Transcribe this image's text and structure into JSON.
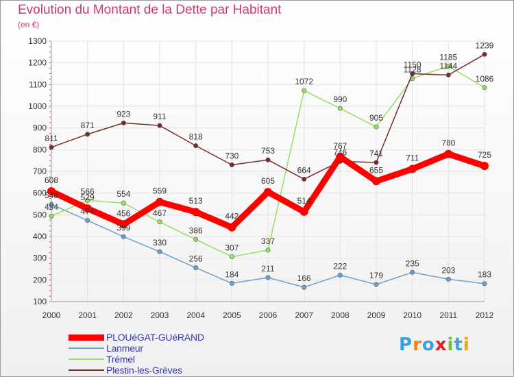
{
  "chart_data": {
    "type": "line",
    "title": "Evolution du Montant de la Dette par Habitant",
    "subtitle": "(en €)",
    "x": [
      "2000",
      "2001",
      "2002",
      "2003",
      "2004",
      "2005",
      "2006",
      "2007",
      "2008",
      "2009",
      "2010",
      "2011",
      "2012"
    ],
    "ylim": [
      100,
      1300
    ],
    "yticks": [
      100,
      200,
      300,
      400,
      500,
      600,
      700,
      800,
      900,
      1000,
      1100,
      1200,
      1300
    ],
    "grid": true,
    "legend_position": "bottom-left",
    "series": [
      {
        "name": "PLOUéGAT-GUéRAND",
        "color": "#ff0000",
        "values": [
          608,
          529,
          456,
          559,
          513,
          442,
          605,
          514,
          767,
          655,
          711,
          780,
          725
        ]
      },
      {
        "name": "Lanmeur",
        "color": "#6fa0cf",
        "values": [
          548,
          474,
          399,
          330,
          256,
          184,
          211,
          166,
          222,
          179,
          235,
          203,
          183
        ]
      },
      {
        "name": "Trémel",
        "color": "#99e060",
        "values": [
          494,
          566,
          554,
          467,
          386,
          307,
          337,
          1072,
          990,
          905,
          1128,
          1185,
          1086
        ]
      },
      {
        "name": "Plestin-les-Grèves",
        "color": "#7a2a2a",
        "values": [
          811,
          871,
          923,
          911,
          818,
          730,
          753,
          664,
          746,
          741,
          1150,
          1144,
          1239
        ]
      }
    ]
  },
  "logo": {
    "text": "Proxiti",
    "colors": [
      "#3aa0e0",
      "#f08020",
      "#3aa0e0",
      "#e02020",
      "#70c030",
      "#3aa0e0",
      "#f0a020"
    ]
  }
}
